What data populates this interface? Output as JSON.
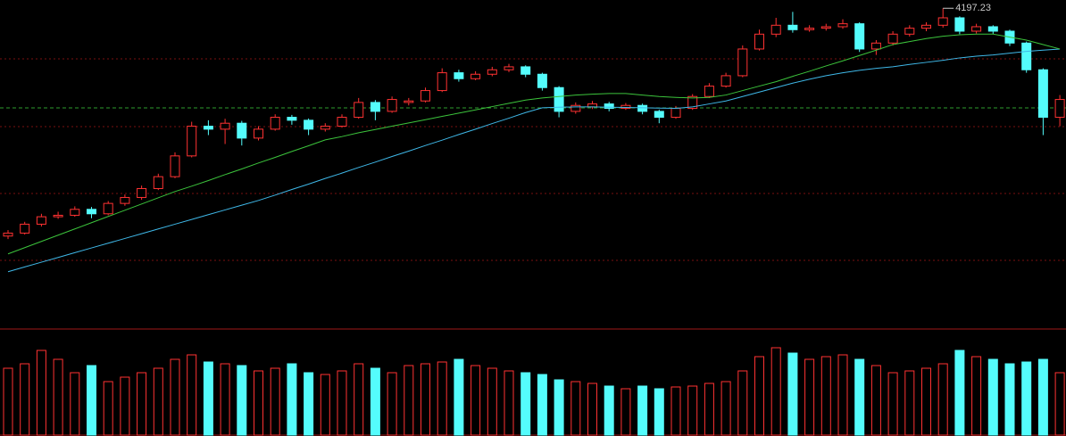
{
  "chart_data": {
    "type": "candlestick",
    "up_color": "#ff3232",
    "down_color": "#54fcfc",
    "ylim": [
      3120,
      4225
    ],
    "candles": [
      [
        3430,
        3450,
        3420,
        3440
      ],
      [
        3440,
        3478,
        3435,
        3470
      ],
      [
        3470,
        3505,
        3462,
        3495
      ],
      [
        3495,
        3512,
        3488,
        3500
      ],
      [
        3500,
        3530,
        3495,
        3520
      ],
      [
        3520,
        3528,
        3490,
        3505
      ],
      [
        3505,
        3548,
        3500,
        3540
      ],
      [
        3540,
        3570,
        3532,
        3560
      ],
      [
        3560,
        3600,
        3552,
        3590
      ],
      [
        3590,
        3640,
        3585,
        3630
      ],
      [
        3630,
        3712,
        3625,
        3700
      ],
      [
        3700,
        3815,
        3695,
        3800
      ],
      [
        3800,
        3820,
        3770,
        3790
      ],
      [
        3790,
        3825,
        3740,
        3810
      ],
      [
        3810,
        3818,
        3735,
        3760
      ],
      [
        3760,
        3800,
        3752,
        3790
      ],
      [
        3790,
        3840,
        3785,
        3830
      ],
      [
        3830,
        3838,
        3805,
        3820
      ],
      [
        3820,
        3826,
        3770,
        3790
      ],
      [
        3790,
        3810,
        3782,
        3800
      ],
      [
        3800,
        3840,
        3795,
        3830
      ],
      [
        3830,
        3895,
        3825,
        3880
      ],
      [
        3880,
        3888,
        3820,
        3850
      ],
      [
        3850,
        3900,
        3845,
        3890
      ],
      [
        3880,
        3895,
        3870,
        3885
      ],
      [
        3885,
        3930,
        3880,
        3920
      ],
      [
        3920,
        3995,
        3915,
        3980
      ],
      [
        3980,
        3990,
        3950,
        3960
      ],
      [
        3960,
        3985,
        3955,
        3975
      ],
      [
        3975,
        4000,
        3968,
        3990
      ],
      [
        3990,
        4010,
        3982,
        4000
      ],
      [
        4000,
        4005,
        3965,
        3975
      ],
      [
        3975,
        3980,
        3920,
        3930
      ],
      [
        3930,
        3935,
        3830,
        3850
      ],
      [
        3850,
        3880,
        3842,
        3870
      ],
      [
        3865,
        3885,
        3858,
        3875
      ],
      [
        3875,
        3882,
        3850,
        3860
      ],
      [
        3860,
        3878,
        3855,
        3870
      ],
      [
        3870,
        3876,
        3840,
        3850
      ],
      [
        3850,
        3856,
        3810,
        3830
      ],
      [
        3830,
        3868,
        3825,
        3860
      ],
      [
        3860,
        3908,
        3855,
        3900
      ],
      [
        3900,
        3945,
        3895,
        3935
      ],
      [
        3935,
        3980,
        3930,
        3970
      ],
      [
        3970,
        4072,
        3965,
        4060
      ],
      [
        4060,
        4125,
        4055,
        4110
      ],
      [
        4110,
        4165,
        4100,
        4140
      ],
      [
        4140,
        4185,
        4115,
        4125
      ],
      [
        4125,
        4140,
        4118,
        4130
      ],
      [
        4130,
        4145,
        4122,
        4135
      ],
      [
        4135,
        4160,
        4128,
        4145
      ],
      [
        4145,
        4150,
        4050,
        4060
      ],
      [
        4060,
        4090,
        4040,
        4080
      ],
      [
        4080,
        4120,
        4072,
        4110
      ],
      [
        4110,
        4140,
        4102,
        4130
      ],
      [
        4130,
        4150,
        4120,
        4140
      ],
      [
        4140,
        4197.23,
        4132,
        4165
      ],
      [
        4165,
        4170,
        4110,
        4120
      ],
      [
        4120,
        4145,
        4112,
        4135
      ],
      [
        4135,
        4140,
        4110,
        4120
      ],
      [
        4120,
        4125,
        4070,
        4080
      ],
      [
        4080,
        4085,
        3980,
        3990
      ],
      [
        3990,
        3995,
        3770,
        3830
      ],
      [
        3830,
        3905,
        3800,
        3890
      ]
    ],
    "ma": [
      {
        "color": "#3fb8e8",
        "values": [
          3310,
          3326,
          3342,
          3358,
          3374,
          3390,
          3406,
          3422,
          3438,
          3454,
          3470,
          3486,
          3502,
          3518,
          3534,
          3550,
          3568,
          3587,
          3605,
          3624,
          3642,
          3661,
          3679,
          3698,
          3716,
          3735,
          3753,
          3772,
          3790,
          3809,
          3827,
          3846,
          3862,
          3864,
          3865,
          3865,
          3864,
          3863,
          3862,
          3861,
          3860,
          3865,
          3875,
          3885,
          3900,
          3915,
          3930,
          3945,
          3958,
          3970,
          3980,
          3988,
          3995,
          4000,
          4008,
          4015,
          4022,
          4030,
          4036,
          4040,
          4046,
          4052,
          4056,
          4060
        ]
      },
      {
        "color": "#3cc43c",
        "values": [
          3370,
          3391,
          3412,
          3433,
          3454,
          3475,
          3496,
          3517,
          3538,
          3559,
          3580,
          3598,
          3617,
          3637,
          3656,
          3676,
          3695,
          3715,
          3734,
          3754,
          3765,
          3778,
          3789,
          3800,
          3811,
          3822,
          3833,
          3844,
          3855,
          3866,
          3877,
          3888,
          3895,
          3900,
          3905,
          3908,
          3910,
          3910,
          3905,
          3900,
          3897,
          3895,
          3897,
          3905,
          3920,
          3935,
          3950,
          3968,
          3985,
          4003,
          4020,
          4038,
          4056,
          4075,
          4085,
          4095,
          4103,
          4108,
          4110,
          4110,
          4100,
          4090,
          4075,
          4060
        ]
      }
    ],
    "volume_lim": [
      0,
      110
    ],
    "volume": [
      75,
      80,
      95,
      85,
      70,
      78,
      60,
      65,
      70,
      75,
      85,
      90,
      82,
      80,
      78,
      72,
      75,
      80,
      70,
      68,
      72,
      80,
      75,
      70,
      78,
      80,
      82,
      85,
      78,
      75,
      72,
      70,
      68,
      62,
      60,
      58,
      55,
      52,
      55,
      52,
      54,
      55,
      58,
      60,
      72,
      88,
      98,
      92,
      85,
      88,
      90,
      85,
      78,
      70,
      72,
      75,
      80,
      95,
      88,
      85,
      80,
      82,
      85,
      70
    ]
  }
}
